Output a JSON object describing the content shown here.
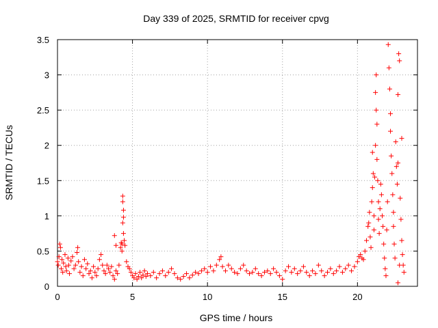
{
  "chart_data": {
    "type": "scatter",
    "title": "Day 339 of 2025, SRMTID for receiver cpvg",
    "xlabel": "GPS time / hours",
    "ylabel": "SRMTID / TECUs",
    "xlim": [
      0,
      24
    ],
    "ylim": [
      0,
      3.5
    ],
    "xticks": [
      0,
      5,
      10,
      15,
      20
    ],
    "xtick_labels": [
      "0",
      "5",
      "10",
      "15",
      "20"
    ],
    "yticks": [
      0,
      0.5,
      1,
      1.5,
      2,
      2.5,
      3,
      3.5
    ],
    "ytick_labels": [
      "0",
      "0.5",
      "1",
      "1.5",
      "2",
      "2.5",
      "3",
      "3.5"
    ],
    "grid": true,
    "marker": "+",
    "color": "#ff0000",
    "series": [
      {
        "name": "SRMTID",
        "points": [
          [
            0.0,
            0.35
          ],
          [
            0.05,
            0.3
          ],
          [
            0.1,
            0.42
          ],
          [
            0.15,
            0.6
          ],
          [
            0.2,
            0.55
          ],
          [
            0.25,
            0.25
          ],
          [
            0.3,
            0.38
          ],
          [
            0.35,
            0.2
          ],
          [
            0.4,
            0.33
          ],
          [
            0.5,
            0.45
          ],
          [
            0.55,
            0.28
          ],
          [
            0.6,
            0.22
          ],
          [
            0.7,
            0.4
          ],
          [
            0.75,
            0.3
          ],
          [
            0.8,
            0.18
          ],
          [
            0.9,
            0.36
          ],
          [
            1.0,
            0.42
          ],
          [
            1.1,
            0.25
          ],
          [
            1.2,
            0.3
          ],
          [
            1.3,
            0.48
          ],
          [
            1.35,
            0.55
          ],
          [
            1.4,
            0.35
          ],
          [
            1.5,
            0.2
          ],
          [
            1.6,
            0.28
          ],
          [
            1.7,
            0.15
          ],
          [
            1.8,
            0.38
          ],
          [
            1.9,
            0.25
          ],
          [
            2.0,
            0.32
          ],
          [
            2.1,
            0.18
          ],
          [
            2.2,
            0.22
          ],
          [
            2.3,
            0.12
          ],
          [
            2.4,
            0.28
          ],
          [
            2.5,
            0.2
          ],
          [
            2.6,
            0.15
          ],
          [
            2.7,
            0.25
          ],
          [
            2.8,
            0.38
          ],
          [
            2.9,
            0.45
          ],
          [
            3.0,
            0.3
          ],
          [
            3.1,
            0.22
          ],
          [
            3.2,
            0.18
          ],
          [
            3.3,
            0.3
          ],
          [
            3.4,
            0.25
          ],
          [
            3.5,
            0.2
          ],
          [
            3.6,
            0.28
          ],
          [
            3.7,
            0.15
          ],
          [
            3.8,
            0.1
          ],
          [
            3.9,
            0.22
          ],
          [
            4.0,
            0.18
          ],
          [
            3.8,
            0.72
          ],
          [
            3.9,
            0.58
          ],
          [
            4.1,
            0.3
          ],
          [
            4.2,
            0.55
          ],
          [
            4.25,
            0.62
          ],
          [
            4.3,
            0.6
          ],
          [
            4.35,
            1.2
          ],
          [
            4.35,
            1.28
          ],
          [
            4.4,
            1.08
          ],
          [
            4.4,
            0.98
          ],
          [
            4.35,
            0.9
          ],
          [
            4.4,
            0.75
          ],
          [
            4.45,
            0.65
          ],
          [
            4.5,
            0.58
          ],
          [
            4.3,
            0.5
          ],
          [
            4.6,
            0.35
          ],
          [
            4.7,
            0.28
          ],
          [
            4.8,
            0.25
          ],
          [
            4.9,
            0.2
          ],
          [
            5.0,
            0.15
          ],
          [
            5.1,
            0.12
          ],
          [
            5.2,
            0.18
          ],
          [
            5.3,
            0.1
          ],
          [
            5.4,
            0.14
          ],
          [
            5.5,
            0.2
          ],
          [
            5.6,
            0.12
          ],
          [
            5.7,
            0.16
          ],
          [
            5.8,
            0.22
          ],
          [
            5.9,
            0.14
          ],
          [
            6.0,
            0.18
          ],
          [
            6.2,
            0.15
          ],
          [
            6.4,
            0.2
          ],
          [
            6.6,
            0.12
          ],
          [
            6.8,
            0.18
          ],
          [
            7.0,
            0.22
          ],
          [
            7.2,
            0.15
          ],
          [
            7.4,
            0.2
          ],
          [
            7.6,
            0.25
          ],
          [
            7.8,
            0.18
          ],
          [
            8.0,
            0.12
          ],
          [
            8.2,
            0.1
          ],
          [
            8.4,
            0.14
          ],
          [
            8.6,
            0.18
          ],
          [
            8.8,
            0.12
          ],
          [
            9.0,
            0.16
          ],
          [
            9.2,
            0.2
          ],
          [
            9.4,
            0.18
          ],
          [
            9.6,
            0.22
          ],
          [
            9.8,
            0.25
          ],
          [
            10.0,
            0.2
          ],
          [
            10.2,
            0.28
          ],
          [
            10.4,
            0.22
          ],
          [
            10.6,
            0.3
          ],
          [
            10.8,
            0.38
          ],
          [
            10.9,
            0.42
          ],
          [
            11.0,
            0.28
          ],
          [
            11.2,
            0.22
          ],
          [
            11.4,
            0.3
          ],
          [
            11.6,
            0.25
          ],
          [
            11.8,
            0.2
          ],
          [
            12.0,
            0.18
          ],
          [
            12.2,
            0.25
          ],
          [
            12.4,
            0.3
          ],
          [
            12.6,
            0.22
          ],
          [
            12.8,
            0.18
          ],
          [
            13.0,
            0.2
          ],
          [
            13.2,
            0.25
          ],
          [
            13.4,
            0.18
          ],
          [
            13.6,
            0.15
          ],
          [
            13.8,
            0.2
          ],
          [
            14.0,
            0.22
          ],
          [
            14.2,
            0.18
          ],
          [
            14.4,
            0.25
          ],
          [
            14.6,
            0.2
          ],
          [
            14.8,
            0.15
          ],
          [
            15.0,
            0.1
          ],
          [
            15.2,
            0.22
          ],
          [
            15.4,
            0.28
          ],
          [
            15.6,
            0.2
          ],
          [
            15.8,
            0.25
          ],
          [
            16.0,
            0.18
          ],
          [
            16.2,
            0.22
          ],
          [
            16.4,
            0.28
          ],
          [
            16.6,
            0.2
          ],
          [
            16.8,
            0.15
          ],
          [
            17.0,
            0.22
          ],
          [
            17.2,
            0.18
          ],
          [
            17.4,
            0.3
          ],
          [
            17.6,
            0.22
          ],
          [
            17.8,
            0.15
          ],
          [
            18.0,
            0.2
          ],
          [
            18.2,
            0.25
          ],
          [
            18.4,
            0.18
          ],
          [
            18.6,
            0.22
          ],
          [
            18.8,
            0.28
          ],
          [
            19.0,
            0.2
          ],
          [
            19.2,
            0.25
          ],
          [
            19.4,
            0.3
          ],
          [
            19.6,
            0.22
          ],
          [
            19.8,
            0.28
          ],
          [
            20.0,
            0.35
          ],
          [
            20.1,
            0.42
          ],
          [
            20.2,
            0.45
          ],
          [
            20.3,
            0.4
          ],
          [
            20.4,
            0.38
          ],
          [
            20.5,
            0.5
          ],
          [
            20.6,
            0.65
          ],
          [
            20.7,
            0.85
          ],
          [
            20.75,
            0.9
          ],
          [
            20.8,
            1.05
          ],
          [
            20.85,
            0.7
          ],
          [
            20.9,
            0.55
          ],
          [
            20.95,
            1.2
          ],
          [
            21.0,
            1.4
          ],
          [
            21.0,
            1.9
          ],
          [
            21.05,
            1.6
          ],
          [
            21.1,
            1.0
          ],
          [
            21.1,
            0.8
          ],
          [
            21.15,
            1.55
          ],
          [
            21.2,
            2.0
          ],
          [
            21.2,
            2.75
          ],
          [
            21.25,
            3.0
          ],
          [
            21.25,
            2.5
          ],
          [
            21.3,
            2.3
          ],
          [
            21.3,
            1.8
          ],
          [
            21.35,
            1.5
          ],
          [
            21.4,
            1.2
          ],
          [
            21.4,
            0.95
          ],
          [
            21.45,
            0.75
          ],
          [
            21.5,
            1.1
          ],
          [
            21.55,
            1.45
          ],
          [
            21.6,
            1.3
          ],
          [
            21.65,
            1.0
          ],
          [
            21.7,
            0.85
          ],
          [
            21.75,
            0.6
          ],
          [
            21.8,
            0.4
          ],
          [
            21.85,
            0.25
          ],
          [
            21.9,
            0.15
          ],
          [
            21.95,
            0.8
          ],
          [
            22.0,
            1.2
          ],
          [
            22.05,
            3.43
          ],
          [
            22.1,
            3.1
          ],
          [
            22.15,
            2.8
          ],
          [
            22.2,
            2.45
          ],
          [
            22.2,
            2.2
          ],
          [
            22.25,
            1.85
          ],
          [
            22.3,
            1.6
          ],
          [
            22.35,
            1.3
          ],
          [
            22.4,
            1.05
          ],
          [
            22.4,
            0.85
          ],
          [
            22.45,
            0.6
          ],
          [
            22.5,
            0.4
          ],
          [
            22.55,
            2.05
          ],
          [
            22.6,
            1.7
          ],
          [
            22.65,
            1.45
          ],
          [
            22.7,
            1.75
          ],
          [
            22.7,
            2.72
          ],
          [
            22.75,
            3.3
          ],
          [
            22.8,
            3.2
          ],
          [
            22.8,
            0.3
          ],
          [
            22.85,
            1.25
          ],
          [
            22.9,
            0.95
          ],
          [
            22.95,
            0.65
          ],
          [
            23.0,
            0.45
          ],
          [
            23.05,
            0.3
          ],
          [
            23.1,
            0.2
          ],
          [
            22.7,
            0.05
          ],
          [
            22.95,
            2.1
          ]
        ]
      }
    ]
  }
}
